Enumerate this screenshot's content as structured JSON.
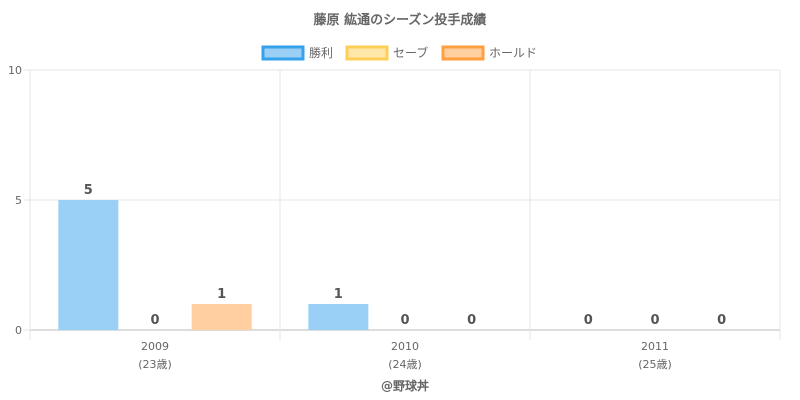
{
  "chart_data": {
    "type": "bar",
    "title": "藤原 紘通のシーズン投手成績",
    "categories": [
      "2009",
      "2010",
      "2011"
    ],
    "category_sublabels": [
      "(23歳)",
      "(24歳)",
      "(25歳)"
    ],
    "series": [
      {
        "name": "勝利",
        "values": [
          5,
          1,
          0
        ],
        "fill": "#9ad0f5",
        "stroke": "#36a2eb"
      },
      {
        "name": "セーブ",
        "values": [
          0,
          0,
          0
        ],
        "fill": "#ffe6a9",
        "stroke": "#ffce56"
      },
      {
        "name": "ホールド",
        "values": [
          1,
          0,
          0
        ],
        "fill": "#ffcf9f",
        "stroke": "#ff9f40"
      }
    ],
    "ylim": [
      0,
      10
    ],
    "yticks": [
      0,
      5,
      10
    ],
    "grid": true,
    "legend": "top",
    "credit": "@野球丼"
  }
}
